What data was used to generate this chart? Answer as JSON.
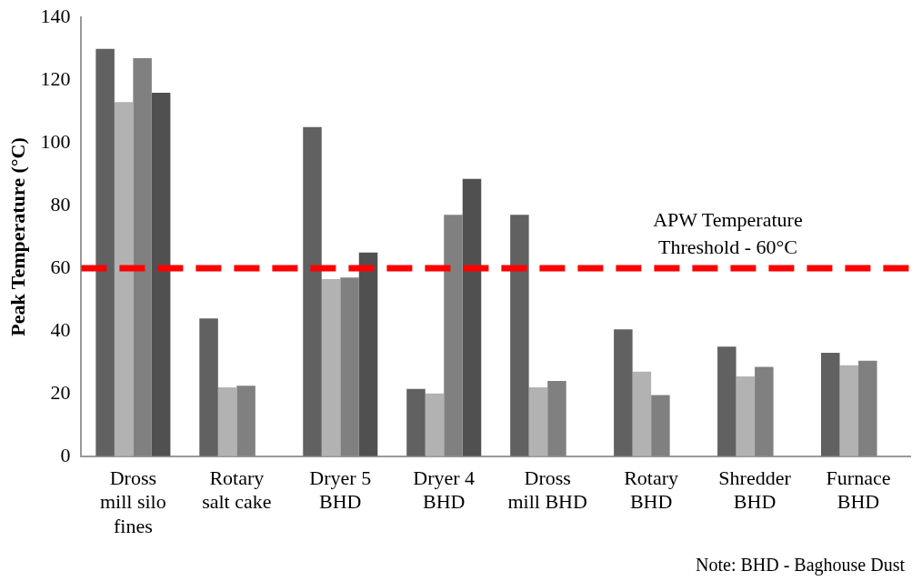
{
  "chart_data": {
    "type": "bar",
    "ylabel": "Peak Temperature (°C)",
    "categories": [
      "Dross mill silo fines",
      "Rotary salt cake",
      "Dryer 5 BHD",
      "Dryer 4 BHD",
      "Dross mill BHD",
      "Rotary BHD",
      "Shredder BHD",
      "Furnace BHD"
    ],
    "series": [
      {
        "color": "#616161",
        "values": [
          130,
          44,
          105,
          21.5,
          77,
          40.5,
          35,
          33
        ]
      },
      {
        "color": "#b2b2b2",
        "values": [
          113,
          22,
          56.5,
          20,
          22,
          27,
          25.5,
          29
        ]
      },
      {
        "color": "#808080",
        "values": [
          127,
          22.5,
          57,
          77,
          24,
          19.5,
          28.5,
          30.5
        ]
      },
      {
        "color": "#505050",
        "values": [
          116,
          null,
          65,
          88.5,
          null,
          null,
          null,
          null
        ]
      }
    ],
    "ylim": [
      0,
      140
    ],
    "yticks": [
      0,
      20,
      40,
      60,
      80,
      100,
      120,
      140
    ],
    "grid": false,
    "legend": false,
    "ref_lines": [
      {
        "axis": "y",
        "value": 60,
        "label": "APW Temperature Threshold - 60°C",
        "color": "#ff0000",
        "line_style": "dashed"
      }
    ],
    "annotations": [
      "Note: BHD - Baghouse Dust"
    ]
  }
}
